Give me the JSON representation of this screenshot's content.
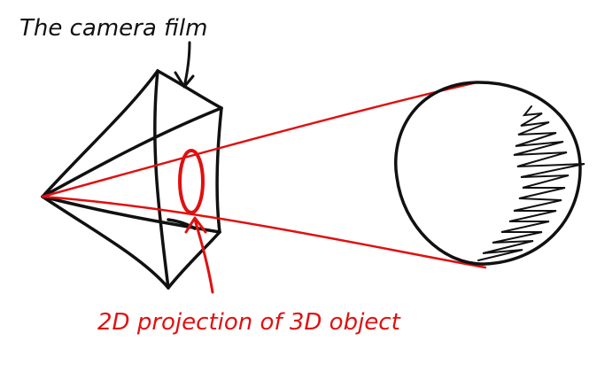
{
  "labels": {
    "camera_film": "The camera film",
    "projection": "2D projection of 3D object"
  },
  "colors": {
    "ink": "#111111",
    "accent": "#e01010",
    "background": "#ffffff"
  }
}
